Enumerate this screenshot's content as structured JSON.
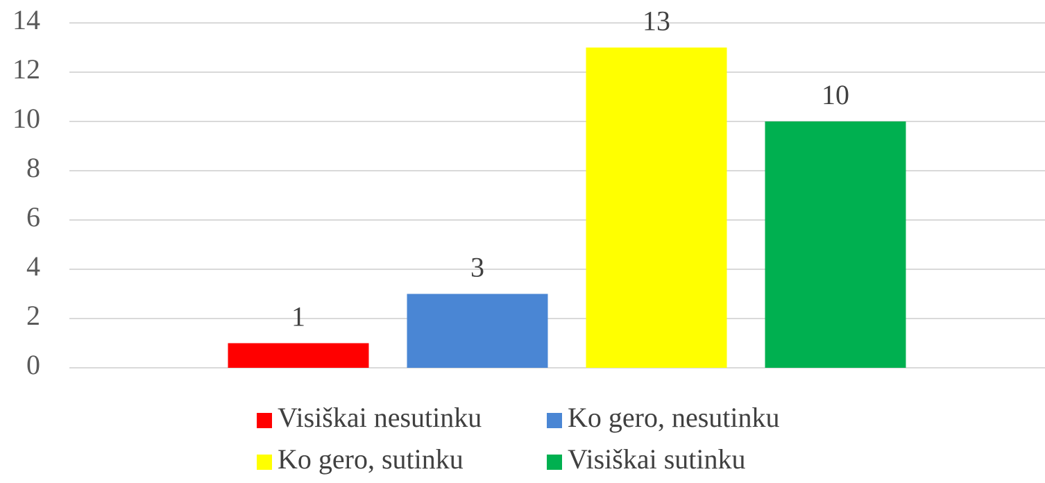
{
  "chart_data": {
    "type": "bar",
    "categories": [
      null
    ],
    "series": [
      {
        "name": "Visiškai nesutinku",
        "color": "#ff0000",
        "values": [
          1
        ]
      },
      {
        "name": "Ko gero, nesutinku",
        "color": "#4a86d4",
        "values": [
          3
        ]
      },
      {
        "name": "Ko gero, sutinku",
        "color": "#ffff00",
        "values": [
          13
        ]
      },
      {
        "name": "Visiškai sutinku",
        "color": "#00b050",
        "values": [
          10
        ]
      }
    ],
    "ylim": [
      0,
      14
    ],
    "yticks": [
      0,
      2,
      4,
      6,
      8,
      10,
      12,
      14
    ],
    "grid": true,
    "legend": "bottom"
  }
}
